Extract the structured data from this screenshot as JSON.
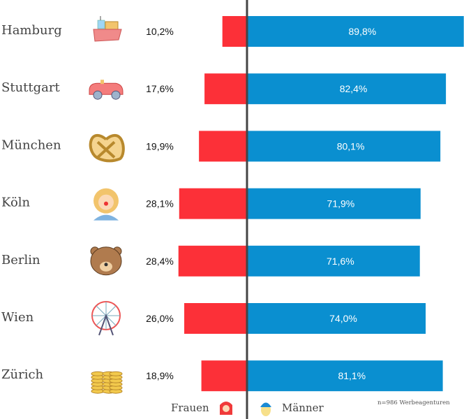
{
  "chart_data": {
    "type": "bar",
    "orientation": "horizontal-diverging",
    "categories": [
      "Hamburg",
      "Stuttgart",
      "München",
      "Köln",
      "Berlin",
      "Wien",
      "Zürich"
    ],
    "icons": [
      "ship-icon",
      "convertible-car-icon",
      "pretzel-icon",
      "clown-icon",
      "bear-icon",
      "ferris-wheel-icon",
      "coins-icon"
    ],
    "series": [
      {
        "name": "Frauen",
        "color": "#fc3038",
        "values": [
          10.2,
          17.6,
          19.9,
          28.1,
          28.4,
          26.0,
          18.9
        ],
        "labels": [
          "10,2%",
          "17,6%",
          "19,9%",
          "28,1%",
          "28,4%",
          "26,0%",
          "18,9%"
        ]
      },
      {
        "name": "Männer",
        "color": "#0a8fd0",
        "values": [
          89.8,
          82.4,
          80.1,
          71.9,
          71.6,
          74.0,
          81.1
        ],
        "labels": [
          "89,8%",
          "82,4%",
          "80,1%",
          "71,9%",
          "71,6%",
          "74,0%",
          "81,1%"
        ]
      }
    ],
    "xlim": [
      0,
      100
    ],
    "legend_position": "bottom",
    "legend_icons": [
      "woman-icon",
      "man-icon"
    ],
    "note": "n=986 Werbeagenturen",
    "axis_color": "#444444"
  }
}
